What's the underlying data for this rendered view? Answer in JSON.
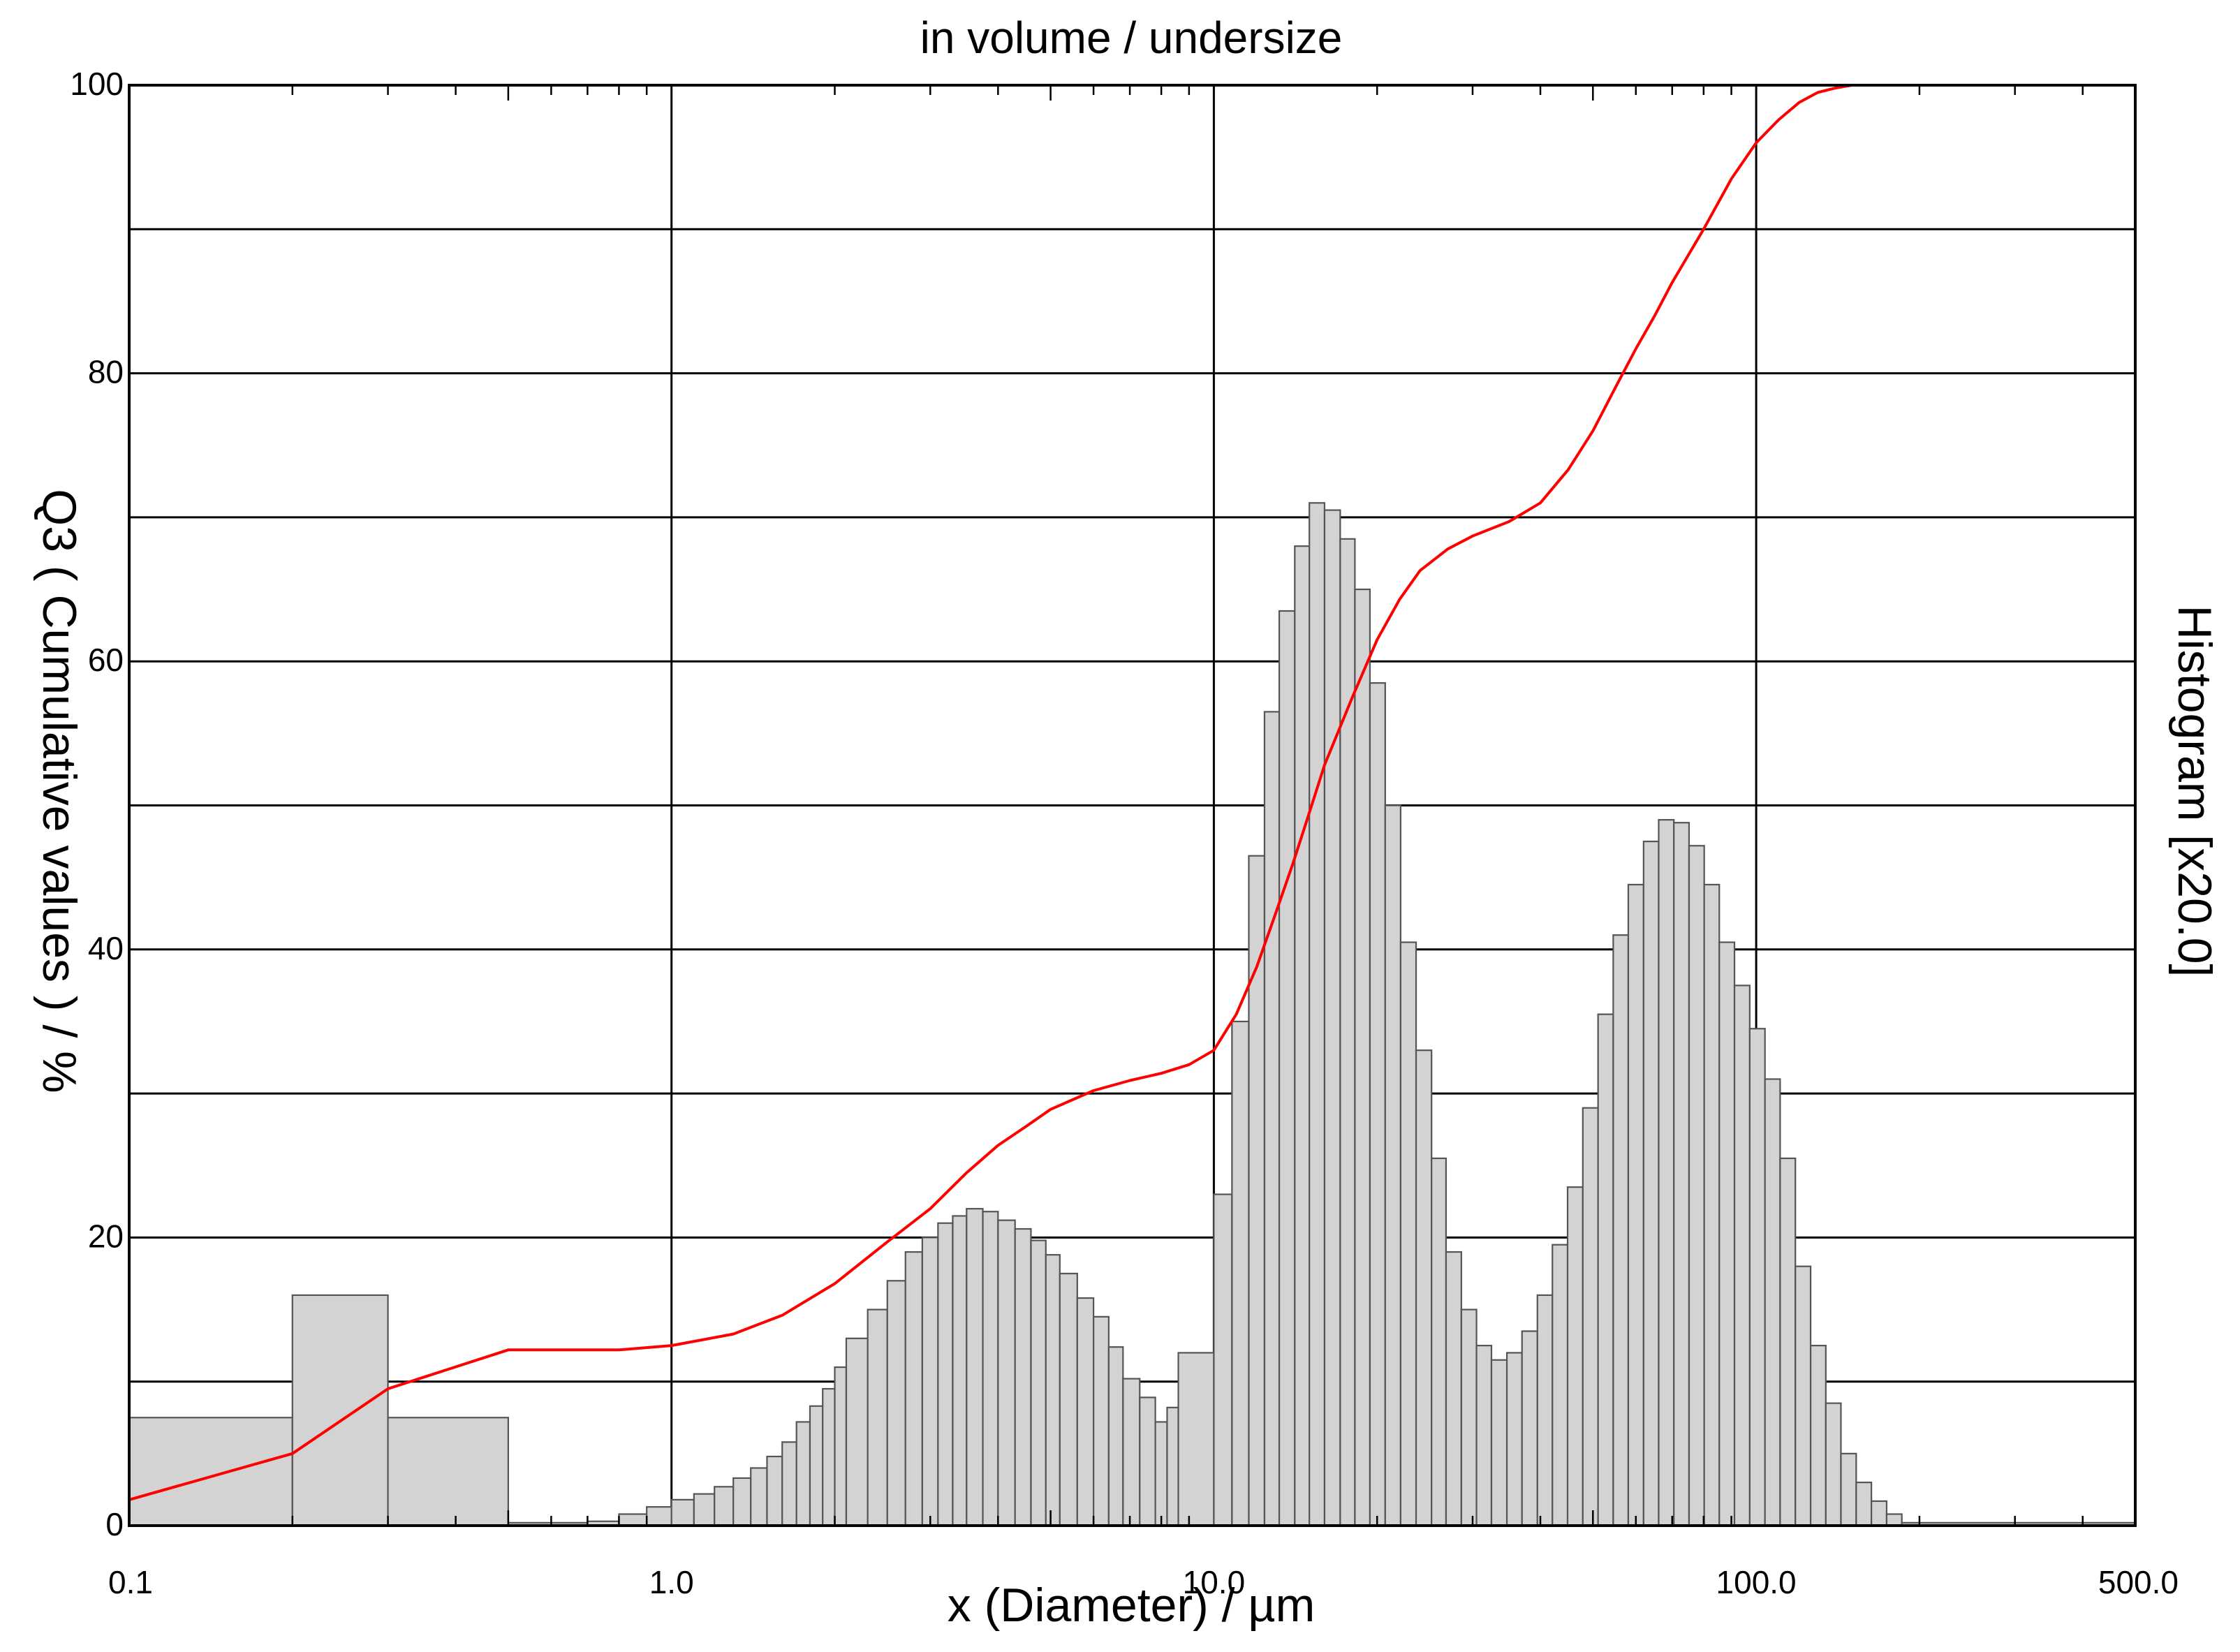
{
  "chart_data": {
    "type": "bar",
    "title": "in volume / undersize",
    "xlabel": "x (Diameter) / µm",
    "ylabel": "Q3 ( Cumulative values ) / %",
    "y2label": "Histogram [x20.0]",
    "x_scale": "log",
    "xlim": [
      0.1,
      500
    ],
    "ylim": [
      0,
      100
    ],
    "x_tick_labels": [
      {
        "value": 0.1,
        "label": "0.1"
      },
      {
        "value": 1,
        "label": "1.0"
      },
      {
        "value": 10,
        "label": "10.0"
      },
      {
        "value": 100,
        "label": "100.0"
      },
      {
        "value": 500,
        "label": "500.0"
      }
    ],
    "y_tick_labels": [
      {
        "value": 0,
        "label": "0"
      },
      {
        "value": 20,
        "label": "20"
      },
      {
        "value": 40,
        "label": "40"
      },
      {
        "value": 60,
        "label": "60"
      },
      {
        "value": 80,
        "label": "80"
      },
      {
        "value": 100,
        "label": "100"
      }
    ],
    "grid": true,
    "histogram": {
      "name": "Histogram",
      "color": "#d3d3d3",
      "edge_color": "#555555",
      "bins": [
        [
          0.1,
          0.2,
          7.5
        ],
        [
          0.2,
          0.3,
          16.0
        ],
        [
          0.3,
          0.5,
          7.5
        ],
        [
          0.5,
          0.7,
          0.2
        ],
        [
          0.7,
          0.8,
          0.3
        ],
        [
          0.8,
          0.9,
          0.8
        ],
        [
          0.9,
          1.0,
          1.3
        ],
        [
          1.0,
          1.1,
          1.8
        ],
        [
          1.1,
          1.2,
          2.2
        ],
        [
          1.2,
          1.3,
          2.7
        ],
        [
          1.3,
          1.4,
          3.3
        ],
        [
          1.4,
          1.5,
          4.0
        ],
        [
          1.5,
          1.6,
          4.8
        ],
        [
          1.6,
          1.7,
          5.8
        ],
        [
          1.7,
          1.8,
          7.2
        ],
        [
          1.8,
          1.9,
          8.3
        ],
        [
          1.9,
          2.0,
          9.5
        ],
        [
          2.0,
          2.1,
          11.0
        ],
        [
          2.1,
          2.3,
          13.0
        ],
        [
          2.3,
          2.5,
          15.0
        ],
        [
          2.5,
          2.7,
          17.0
        ],
        [
          2.7,
          2.9,
          19.0
        ],
        [
          2.9,
          3.1,
          20.0
        ],
        [
          3.1,
          3.3,
          21.0
        ],
        [
          3.3,
          3.5,
          21.5
        ],
        [
          3.5,
          3.75,
          22.0
        ],
        [
          3.75,
          4.0,
          21.8
        ],
        [
          4.0,
          4.3,
          21.2
        ],
        [
          4.3,
          4.6,
          20.6
        ],
        [
          4.6,
          4.9,
          19.8
        ],
        [
          4.9,
          5.2,
          18.8
        ],
        [
          5.2,
          5.6,
          17.5
        ],
        [
          5.6,
          6.0,
          15.8
        ],
        [
          6.0,
          6.4,
          14.5
        ],
        [
          6.4,
          6.8,
          12.4
        ],
        [
          6.8,
          7.3,
          10.2
        ],
        [
          7.3,
          7.8,
          8.9
        ],
        [
          7.8,
          8.2,
          7.2
        ],
        [
          8.2,
          8.6,
          8.2
        ],
        [
          8.6,
          10.0,
          12.0
        ],
        [
          10.0,
          10.8,
          23.0
        ],
        [
          10.8,
          11.6,
          35.0
        ],
        [
          11.6,
          12.4,
          46.5
        ],
        [
          12.4,
          13.2,
          56.5
        ],
        [
          13.2,
          14.1,
          63.5
        ],
        [
          14.1,
          15.0,
          68.0
        ],
        [
          15.0,
          16.0,
          71.0
        ],
        [
          16.0,
          17.1,
          70.5
        ],
        [
          17.1,
          18.2,
          68.5
        ],
        [
          18.2,
          19.4,
          65.0
        ],
        [
          19.4,
          20.7,
          58.5
        ],
        [
          20.7,
          22.1,
          50.0
        ],
        [
          22.1,
          23.6,
          40.5
        ],
        [
          23.6,
          25.2,
          33.0
        ],
        [
          25.2,
          26.8,
          25.5
        ],
        [
          26.8,
          28.6,
          19.0
        ],
        [
          28.6,
          30.5,
          15.0
        ],
        [
          30.5,
          32.5,
          12.5
        ],
        [
          32.5,
          34.7,
          11.5
        ],
        [
          34.7,
          37.0,
          12.0
        ],
        [
          37.0,
          39.5,
          13.5
        ],
        [
          39.5,
          42.1,
          16.0
        ],
        [
          42.1,
          44.9,
          19.5
        ],
        [
          44.9,
          47.9,
          23.5
        ],
        [
          47.9,
          51.1,
          29.0
        ],
        [
          51.1,
          54.5,
          35.5
        ],
        [
          54.5,
          58.1,
          41.0
        ],
        [
          58.1,
          62.0,
          44.5
        ],
        [
          62.0,
          66.1,
          47.5
        ],
        [
          66.1,
          70.5,
          49.0
        ],
        [
          70.5,
          75.2,
          48.8
        ],
        [
          75.2,
          80.2,
          47.2
        ],
        [
          80.2,
          85.5,
          44.5
        ],
        [
          85.5,
          91.2,
          40.5
        ],
        [
          91.2,
          97.3,
          37.5
        ],
        [
          97.3,
          103.8,
          34.5
        ],
        [
          103.8,
          110.7,
          31.0
        ],
        [
          110.7,
          118.1,
          25.5
        ],
        [
          118.1,
          126.0,
          18.0
        ],
        [
          126.0,
          134.4,
          12.5
        ],
        [
          134.4,
          143.3,
          8.5
        ],
        [
          143.3,
          152.9,
          5.0
        ],
        [
          152.9,
          163.1,
          3.0
        ],
        [
          163.1,
          174.0,
          1.7
        ],
        [
          174.0,
          185.6,
          0.8
        ],
        [
          185.6,
          500.0,
          0.2
        ]
      ]
    },
    "series": [
      {
        "type": "line",
        "color": "#ff0000",
        "points": [
          [
            0.1,
            1.8
          ],
          [
            0.2,
            5.0
          ],
          [
            0.3,
            9.5
          ],
          [
            0.5,
            12.2
          ],
          [
            0.8,
            12.2
          ],
          [
            1.0,
            12.5
          ],
          [
            1.3,
            13.3
          ],
          [
            1.6,
            14.6
          ],
          [
            2.0,
            16.8
          ],
          [
            2.5,
            19.7
          ],
          [
            3.0,
            22.0
          ],
          [
            3.5,
            24.5
          ],
          [
            4.0,
            26.4
          ],
          [
            4.5,
            27.7
          ],
          [
            5.0,
            28.9
          ],
          [
            6.0,
            30.2
          ],
          [
            7.0,
            30.9
          ],
          [
            8.0,
            31.4
          ],
          [
            9.0,
            32.0
          ],
          [
            10.0,
            33.0
          ],
          [
            11.0,
            35.5
          ],
          [
            12.0,
            38.8
          ],
          [
            13.0,
            42.5
          ],
          [
            14.0,
            46.0
          ],
          [
            15.0,
            49.5
          ],
          [
            16.0,
            52.8
          ],
          [
            18.0,
            57.5
          ],
          [
            20.0,
            61.5
          ],
          [
            22.0,
            64.3
          ],
          [
            24.0,
            66.3
          ],
          [
            27.0,
            67.8
          ],
          [
            30.0,
            68.7
          ],
          [
            35.0,
            69.7
          ],
          [
            40.0,
            71.0
          ],
          [
            45.0,
            73.3
          ],
          [
            50.0,
            76.0
          ],
          [
            55.0,
            79.0
          ],
          [
            60.0,
            81.7
          ],
          [
            65.0,
            84.0
          ],
          [
            70.0,
            86.3
          ],
          [
            80.0,
            90.0
          ],
          [
            90.0,
            93.5
          ],
          [
            100.0,
            96.0
          ],
          [
            110.0,
            97.6
          ],
          [
            120.0,
            98.8
          ],
          [
            130.0,
            99.5
          ],
          [
            140.0,
            99.8
          ],
          [
            150.0,
            100.0
          ],
          [
            500.0,
            100.0
          ]
        ]
      }
    ]
  }
}
